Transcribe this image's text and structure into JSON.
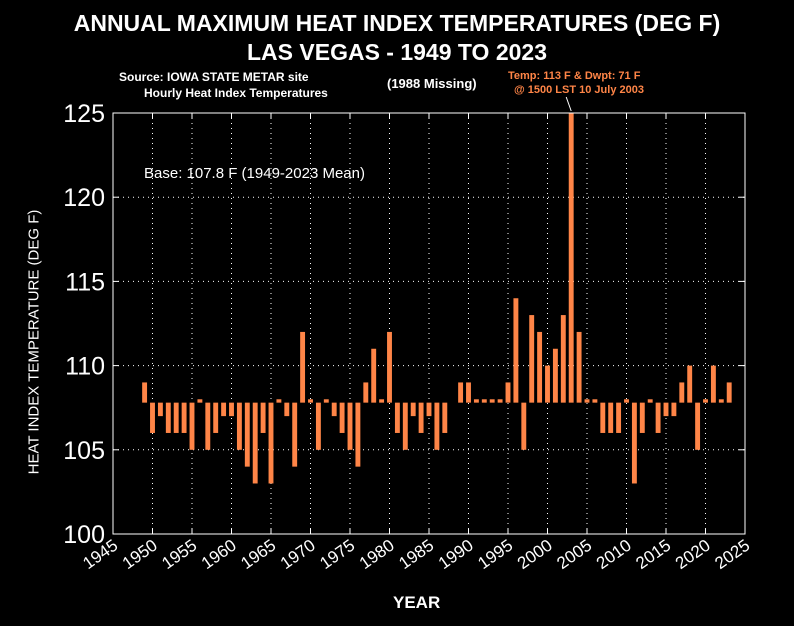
{
  "chart_data": {
    "type": "bar",
    "title": "ANNUAL MAXIMUM HEAT INDEX TEMPERATURES (DEG F)",
    "subtitle": "LAS VEGAS - 1949 TO 2023",
    "source_line1": "Source: IOWA STATE METAR site",
    "source_line2": "Hourly Heat Index Temperatures",
    "missing_note": "(1988 Missing)",
    "peak_annotation_line1": "Temp: 113 F & Dwpt: 71 F",
    "peak_annotation_line2": "@ 1500 LST 10 July 2003",
    "base_label": "Base: 107.8 F (1949-2023 Mean)",
    "base": 107.8,
    "xlabel": "YEAR",
    "ylabel": "HEAT INDEX TEMPERATURE (DEG F)",
    "xlim": [
      1945,
      2025
    ],
    "ylim": [
      100,
      125
    ],
    "x_ticks": [
      "1945",
      "1950",
      "1955",
      "1960",
      "1965",
      "1970",
      "1975",
      "1980",
      "1985",
      "1990",
      "1995",
      "2000",
      "2005",
      "2010",
      "2015",
      "2020",
      "2025"
    ],
    "y_ticks": [
      "100",
      "105",
      "110",
      "115",
      "120",
      "125"
    ],
    "grid": true,
    "bar_color": "#ff8547",
    "x": [
      1949,
      1950,
      1951,
      1952,
      1953,
      1954,
      1955,
      1956,
      1957,
      1958,
      1959,
      1960,
      1961,
      1962,
      1963,
      1964,
      1965,
      1966,
      1967,
      1968,
      1969,
      1970,
      1971,
      1972,
      1973,
      1974,
      1975,
      1976,
      1977,
      1978,
      1979,
      1980,
      1981,
      1982,
      1983,
      1984,
      1985,
      1986,
      1987,
      1989,
      1990,
      1991,
      1992,
      1993,
      1994,
      1995,
      1996,
      1997,
      1998,
      1999,
      2000,
      2001,
      2002,
      2003,
      2004,
      2005,
      2006,
      2007,
      2008,
      2009,
      2010,
      2011,
      2012,
      2013,
      2014,
      2015,
      2016,
      2017,
      2018,
      2019,
      2020,
      2021,
      2022,
      2023
    ],
    "values": [
      109,
      106,
      107,
      106,
      106,
      106,
      105,
      108,
      105,
      106,
      107,
      107,
      105,
      104,
      103,
      106,
      103,
      108,
      107,
      104,
      112,
      108,
      105,
      108,
      107,
      106,
      105,
      104,
      109,
      111,
      108,
      112,
      106,
      105,
      107,
      106,
      107,
      105,
      106,
      109,
      109,
      108,
      108,
      108,
      108,
      109,
      114,
      105,
      113,
      112,
      110,
      111,
      113,
      125,
      112,
      108,
      108,
      106,
      106,
      106,
      108,
      103,
      106,
      108,
      106,
      107,
      107,
      109,
      110,
      105,
      108,
      110,
      108,
      109
    ]
  }
}
